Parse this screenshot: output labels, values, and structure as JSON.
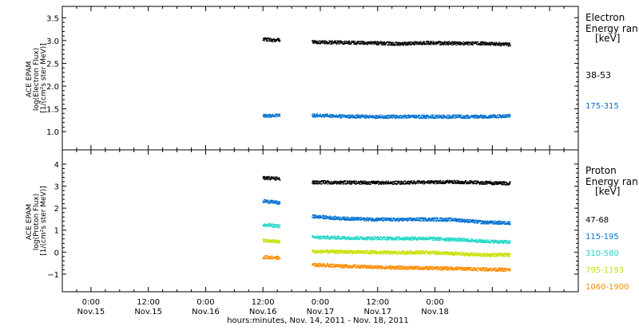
{
  "chart_data": [
    {
      "type": "scatter",
      "panel": "top",
      "ylabel_lines": [
        "ACE EPAM",
        "log(Electron Flux)",
        "[1/(cm²s ster MeV)]"
      ],
      "ylim": [
        0.6,
        3.75
      ],
      "yticks": [
        1.0,
        1.5,
        2.0,
        2.5,
        3.0,
        3.5
      ],
      "ytick_labels": [
        "1.0",
        "1.5",
        "2.0",
        "2.5",
        "3.0",
        "3.5"
      ],
      "legend_title": [
        "Electron",
        "Energy ran",
        "[keV]"
      ],
      "series": [
        {
          "name": "38-53",
          "color": "#000000",
          "segments": [
            {
              "x": [
                41.9,
                44.1,
                45.5
              ],
              "y": [
                3.04,
                3.02,
                3.03
              ]
            },
            {
              "x": [
                52.2,
                58,
                64,
                70,
                76,
                82,
                88,
                93.7
              ],
              "y": [
                2.98,
                2.97,
                2.96,
                2.94,
                2.96,
                2.95,
                2.95,
                2.92
              ]
            }
          ]
        },
        {
          "name": "175-315",
          "color": "#0070d0",
          "segments": [
            {
              "x": [
                41.9,
                44.1,
                45.5
              ],
              "y": [
                1.36,
                1.36,
                1.38
              ]
            },
            {
              "x": [
                52.2,
                58,
                64,
                70,
                76,
                82,
                88,
                93.7
              ],
              "y": [
                1.37,
                1.35,
                1.34,
                1.34,
                1.34,
                1.34,
                1.34,
                1.36
              ]
            }
          ]
        }
      ]
    },
    {
      "type": "scatter",
      "panel": "bottom",
      "ylabel_lines": [
        "ACE EPAM",
        "log(Proton Flux)",
        "[1/(cm²s ster MeV)]"
      ],
      "ylim": [
        -1.8,
        4.65
      ],
      "yticks": [
        -1,
        0,
        1,
        2,
        3,
        4
      ],
      "ytick_labels": [
        "−1",
        "0",
        "1",
        "2",
        "3",
        "4"
      ],
      "legend_title": [
        "Proton",
        "Energy ran",
        "[keV]"
      ],
      "series": [
        {
          "name": "47-68",
          "color": "#000000",
          "segments": [
            {
              "x": [
                41.9,
                44.1,
                45.5
              ],
              "y": [
                3.4,
                3.38,
                3.35
              ]
            },
            {
              "x": [
                52.2,
                58,
                64,
                70,
                76,
                82,
                88,
                93.7
              ],
              "y": [
                3.2,
                3.19,
                3.18,
                3.18,
                3.2,
                3.22,
                3.18,
                3.15
              ]
            }
          ]
        },
        {
          "name": "115-195",
          "color": "#0070d0",
          "segments": [
            {
              "x": [
                41.9,
                44.1,
                45.5
              ],
              "y": [
                2.35,
                2.3,
                2.25
              ]
            },
            {
              "x": [
                52.2,
                58,
                64,
                70,
                76,
                82,
                88,
                93.7
              ],
              "y": [
                1.65,
                1.56,
                1.52,
                1.5,
                1.52,
                1.5,
                1.38,
                1.35
              ]
            }
          ]
        },
        {
          "name": "310-580",
          "color": "#20d8c8",
          "segments": [
            {
              "x": [
                41.9,
                44.1,
                45.5
              ],
              "y": [
                1.25,
                1.23,
                1.2
              ]
            },
            {
              "x": [
                52.2,
                58,
                64,
                70,
                76,
                82,
                88,
                93.7
              ],
              "y": [
                0.7,
                0.68,
                0.66,
                0.65,
                0.65,
                0.6,
                0.52,
                0.48
              ]
            }
          ]
        },
        {
          "name": "795-1193",
          "color": "#c8e000",
          "segments": [
            {
              "x": [
                41.9,
                44.1,
                45.5
              ],
              "y": [
                0.55,
                0.52,
                0.5
              ]
            },
            {
              "x": [
                52.2,
                58,
                64,
                70,
                76,
                82,
                88,
                93.7
              ],
              "y": [
                0.05,
                0.04,
                0.02,
                0.0,
                0.02,
                -0.05,
                -0.1,
                -0.1
              ]
            }
          ]
        },
        {
          "name": "1060-1900",
          "color": "#ff8c00",
          "segments": [
            {
              "x": [
                41.9,
                44.1,
                45.5
              ],
              "y": [
                -0.2,
                -0.22,
                -0.25
              ]
            },
            {
              "x": [
                52.2,
                58,
                64,
                70,
                76,
                82,
                88,
                93.7
              ],
              "y": [
                -0.55,
                -0.6,
                -0.65,
                -0.68,
                -0.7,
                -0.72,
                -0.75,
                -0.78
              ]
            }
          ]
        }
      ]
    }
  ],
  "xaxis": {
    "xlim": [
      0,
      108
    ],
    "ticks": [
      {
        "x": 6,
        "time": "0:00",
        "day": "Nov.15"
      },
      {
        "x": 18,
        "time": "12:00",
        "day": "Nov.15"
      },
      {
        "x": 30,
        "time": "0:00",
        "day": "Nov.16"
      },
      {
        "x": 42,
        "time": "12:00",
        "day": "Nov.16"
      },
      {
        "x": 54,
        "time": "0:00",
        "day": "Nov.17"
      },
      {
        "x": 66,
        "time": "12:00",
        "day": "Nov.17"
      },
      {
        "x": 78,
        "time": "0:00",
        "day": "Nov.18"
      }
    ],
    "label": "hours:minutes, Nov. 14, 2011 - Nov. 18, 2011"
  },
  "colors": {
    "axis": "#000000",
    "background": "#ffffff"
  }
}
